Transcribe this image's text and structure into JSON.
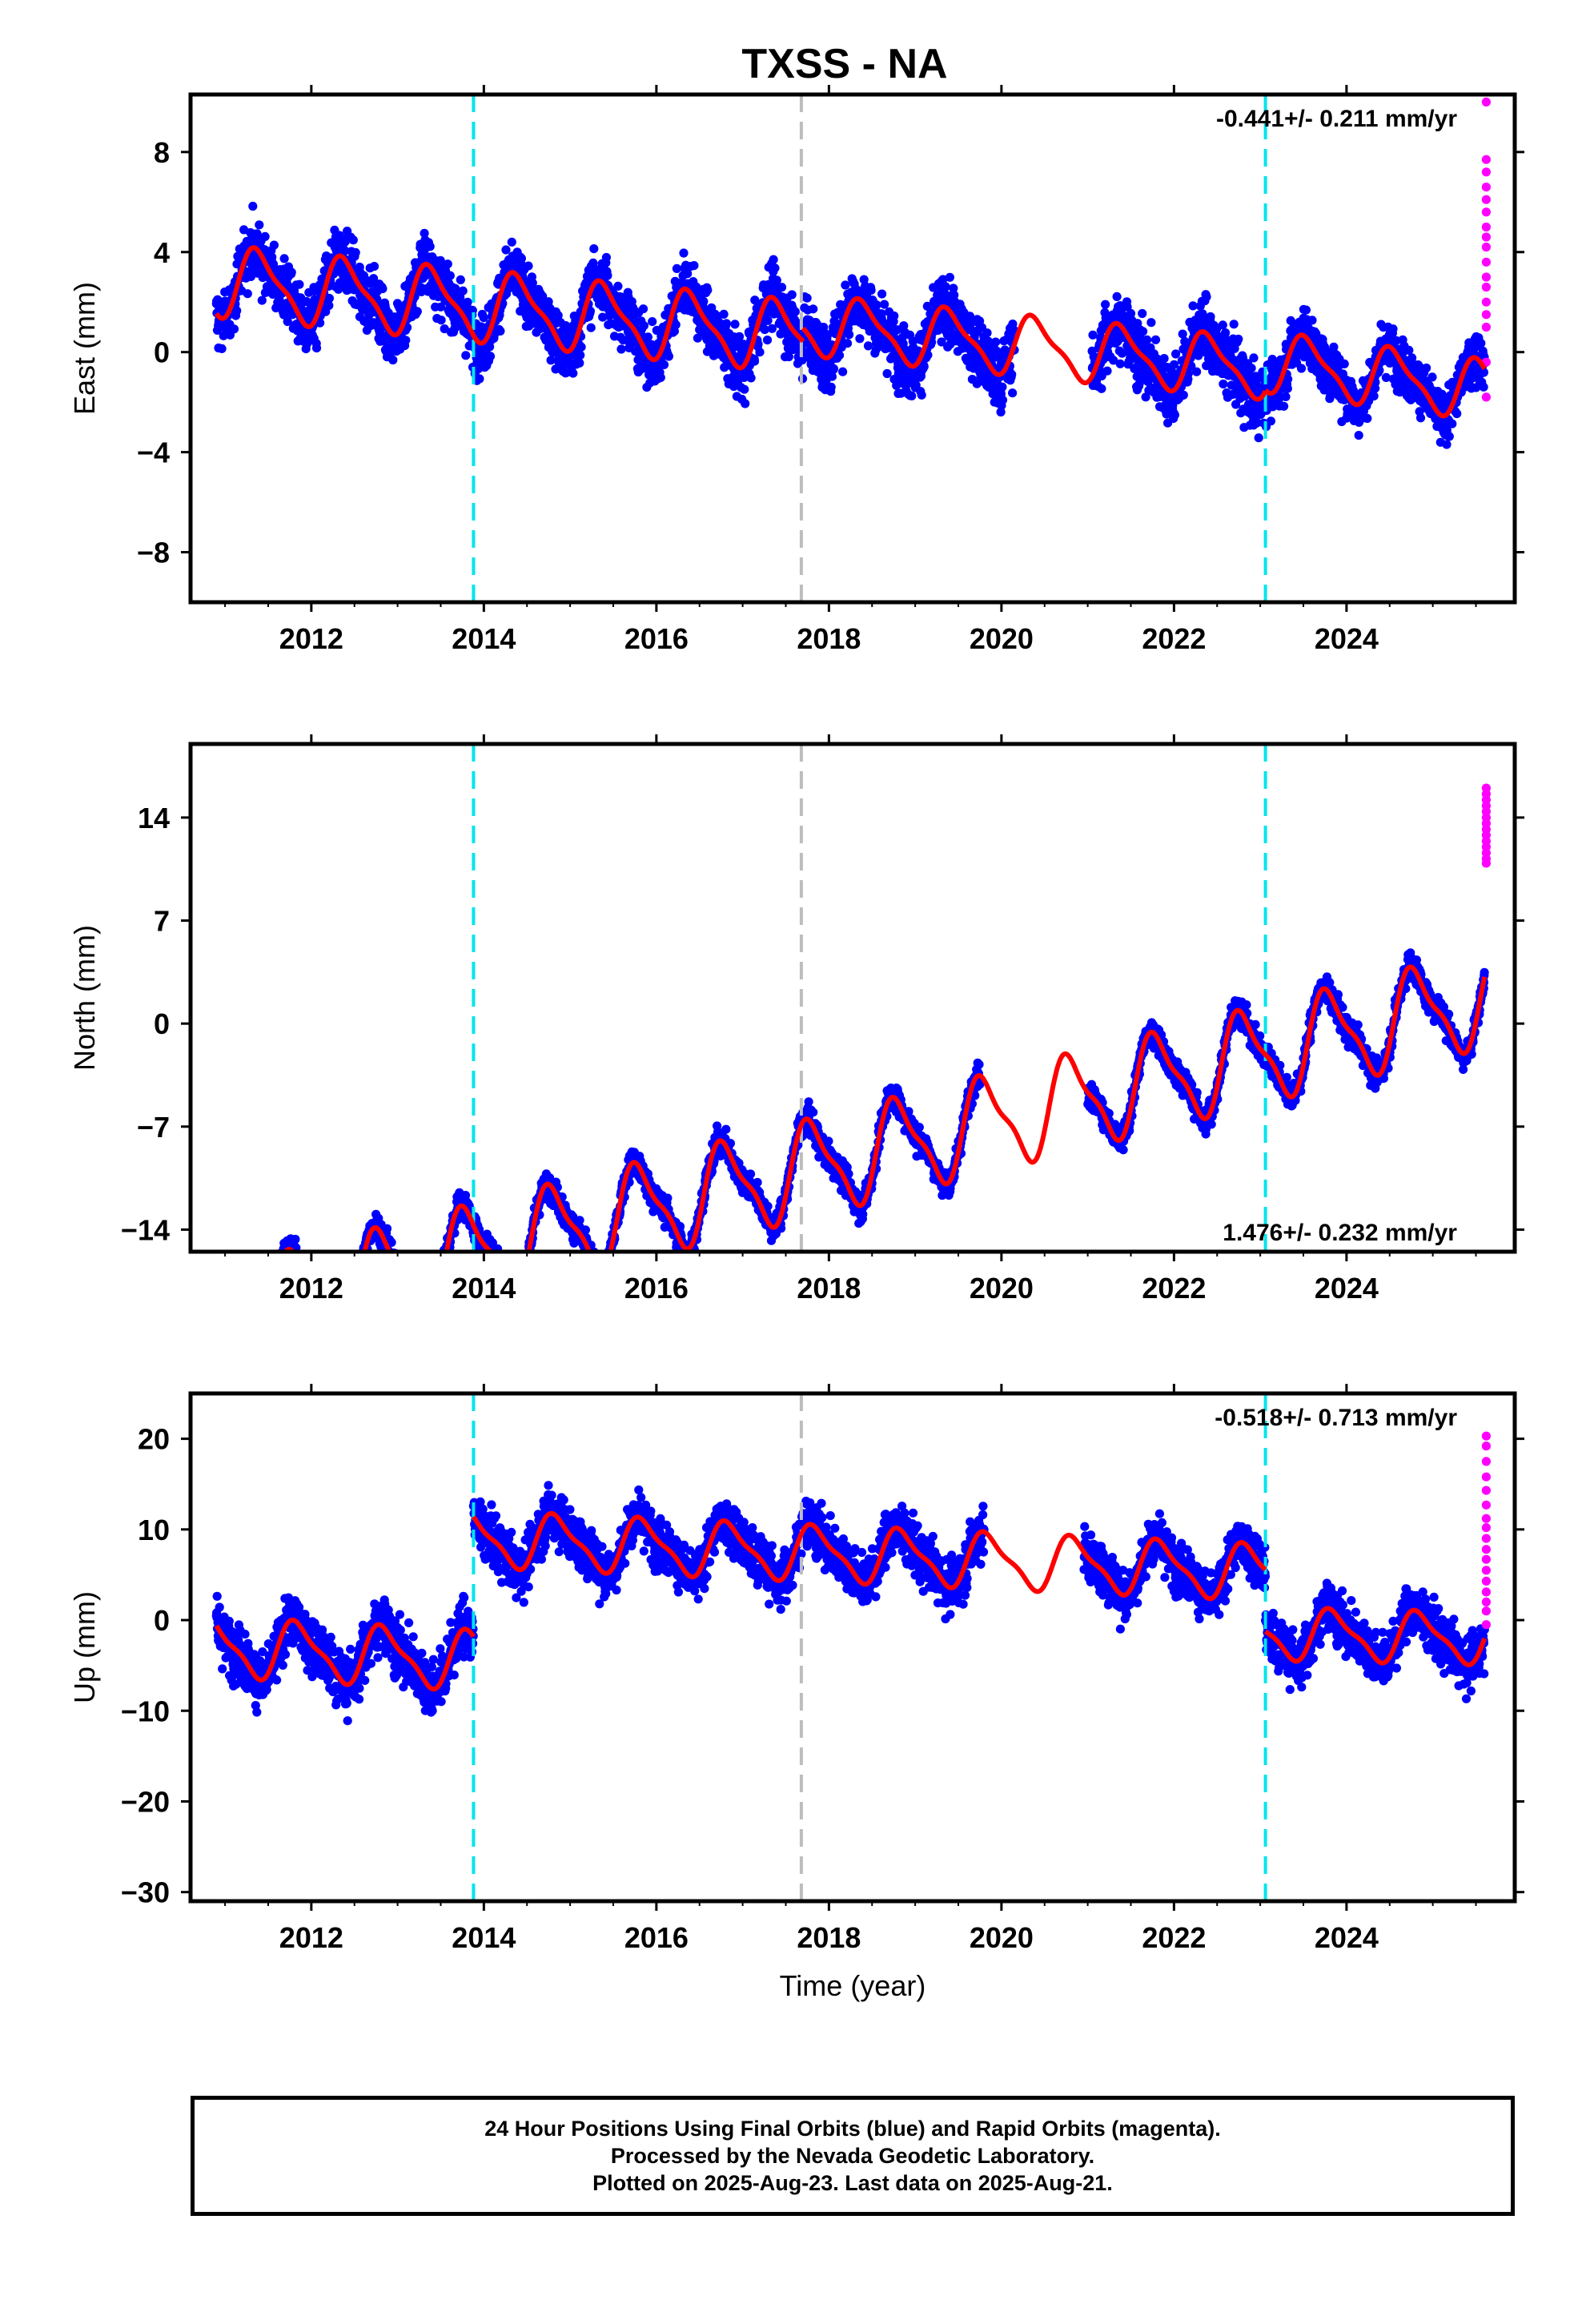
{
  "title": "TXSS - NA",
  "caption": [
    "24 Hour Positions Using Final Orbits (blue) and Rapid Orbits (magenta).",
    "Processed by the Nevada Geodetic Laboratory.",
    "Plotted on 2025-Aug-23. Last data on 2025-Aug-21."
  ],
  "colors": {
    "final": "#0000ff",
    "rapid": "#ff00ff",
    "model": "#ff0000",
    "event_cyan": "#00e5ee",
    "event_gray": "#bdbdbd"
  },
  "chart_data": [
    {
      "type": "scatter",
      "component": "east",
      "title": "TXSS - NA",
      "ylabel": "East (mm)",
      "xlabel": "",
      "xlim": [
        2010.6,
        2025.95
      ],
      "ylim": [
        -10.0,
        10.3
      ],
      "xticks": [
        2012,
        2014,
        2016,
        2018,
        2020,
        2022,
        2024
      ],
      "yticks": [
        -8,
        -4,
        0,
        4,
        8
      ],
      "rate_text": "-0.441+/- 0.211 mm/yr",
      "rate_position": "top-right",
      "grid": false,
      "event_lines": [
        {
          "x": 2013.88,
          "color": "cyan"
        },
        {
          "x": 2017.68,
          "color": "gray"
        },
        {
          "x": 2023.06,
          "color": "cyan"
        }
      ],
      "segments": [
        {
          "start": 2010.9,
          "end": 2017.7,
          "trend": [
            0.5,
            -0.33
          ],
          "amp": 1.3,
          "phase": 0.15,
          "scatter": 1.7
        },
        {
          "start": 2017.7,
          "end": 2023.06,
          "trend": [
            1.0,
            -0.33
          ],
          "amp": 1.1,
          "phase": 0.15,
          "scatter": 1.9
        },
        {
          "start": 2023.06,
          "end": 2025.6,
          "trend": [
            1.9,
            -0.45
          ],
          "amp": 1.1,
          "phase": 0.3,
          "scatter": 1.5
        }
      ],
      "gaps": [
        [
          2020.15,
          2021.05
        ]
      ],
      "rapid": [
        10.0,
        7.7,
        7.2,
        6.6,
        6.1,
        5.6,
        5.0,
        4.6,
        4.2,
        3.6,
        3.0,
        2.6,
        2.0,
        1.5,
        1.0,
        -0.4,
        -1.8
      ]
    },
    {
      "type": "scatter",
      "component": "north",
      "ylabel": "North (mm)",
      "xlabel": "",
      "xlim": [
        2010.6,
        2025.95
      ],
      "ylim": [
        -15.5,
        19.0
      ],
      "xticks": [
        2012,
        2014,
        2016,
        2018,
        2020,
        2022,
        2024
      ],
      "yticks": [
        -14,
        -7,
        0,
        7,
        14
      ],
      "rate_text": "1.476+/- 0.232 mm/yr",
      "rate_position": "bottom-right",
      "grid": false,
      "event_lines": [
        {
          "x": 2013.88,
          "color": "cyan"
        },
        {
          "x": 2017.68,
          "color": "gray"
        },
        {
          "x": 2023.06,
          "color": "cyan"
        }
      ],
      "segments": [
        {
          "start": 2010.9,
          "end": 2025.6,
          "trend": [
            -9.5,
            1.476
          ],
          "amp": 3.0,
          "phase": 0.55,
          "scatter": 1.3
        }
      ],
      "gaps": [
        [
          2019.75,
          2021.0
        ]
      ],
      "rapid": [
        16.0,
        15.6,
        15.2,
        14.8,
        14.4,
        14.0,
        13.6,
        13.2,
        12.8,
        12.4,
        12.0,
        11.6,
        11.2,
        10.9
      ]
    },
    {
      "type": "scatter",
      "component": "up",
      "ylabel": "Up (mm)",
      "xlabel": "Time (year)",
      "xlim": [
        2010.6,
        2025.95
      ],
      "ylim": [
        -31.0,
        25.0
      ],
      "xticks": [
        2012,
        2014,
        2016,
        2018,
        2020,
        2022,
        2024
      ],
      "yticks": [
        -30,
        -20,
        -10,
        0,
        10,
        20
      ],
      "rate_text": "-0.518+/- 0.713 mm/yr",
      "rate_position": "top-right",
      "grid": false,
      "event_lines": [
        {
          "x": 2013.88,
          "color": "cyan"
        },
        {
          "x": 2017.68,
          "color": "gray"
        },
        {
          "x": 2023.06,
          "color": "cyan"
        }
      ],
      "segments": [
        {
          "start": 2010.9,
          "end": 2013.88,
          "trend": [
            -6.5,
            -0.5
          ],
          "amp": 3.0,
          "phase": 0.6,
          "scatter": 4.5
        },
        {
          "start": 2013.88,
          "end": 2023.06,
          "trend": [
            7.3,
            -0.4
          ],
          "amp": 2.8,
          "phase": 0.6,
          "scatter": 4.0
        },
        {
          "start": 2023.06,
          "end": 2025.6,
          "trend": [
            -0.5,
            -0.2
          ],
          "amp": 2.6,
          "phase": 0.6,
          "scatter": 4.0
        }
      ],
      "gaps": [
        [
          2019.8,
          2020.95
        ]
      ],
      "rapid": [
        20.3,
        19.2,
        17.5,
        15.8,
        14.3,
        12.7,
        11.2,
        10.2,
        9.0,
        7.8,
        6.7,
        5.5,
        4.3,
        3.1,
        2.0,
        1.0,
        -0.5
      ]
    }
  ]
}
